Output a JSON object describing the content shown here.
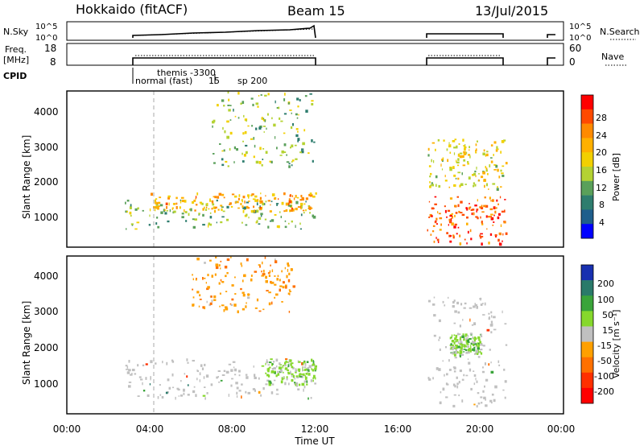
{
  "header": {
    "radar": "Hokkaido (fitACF)",
    "beam": "Beam 15",
    "date": "13/Jul/2015"
  },
  "top_panels": {
    "nsky": {
      "label": "N.Sky",
      "left_ticks": [
        "10^5",
        "10^0"
      ],
      "right_ticks": [
        "10^5",
        "10^0"
      ],
      "right_label": "N.Search"
    },
    "freq": {
      "label_line1": "Freq.",
      "label_line2": "[MHz]",
      "left_ticks": [
        "18",
        "8"
      ],
      "right_ticks": [
        "60",
        "0"
      ],
      "right_label": "Nave"
    },
    "cpid": {
      "label": "CPID",
      "annotations": [
        "themis -3300",
        "normal (fast)",
        "15",
        "sp 200"
      ]
    }
  },
  "power_panel": {
    "ylabel": "Slant Range [km]",
    "yticks": [
      "4000",
      "3000",
      "2000",
      "1000"
    ],
    "colorbar_label": "Power [dB]",
    "colorbar_ticks": [
      "28",
      "24",
      "20",
      "16",
      "12",
      "8",
      "4"
    ],
    "colors": [
      "#ff0000",
      "#ff4a00",
      "#ff8a00",
      "#ffb000",
      "#f2d000",
      "#b4d232",
      "#5aa05a",
      "#2e7d6e",
      "#1e5e8c",
      "#0000ff"
    ]
  },
  "velocity_panel": {
    "ylabel": "Slant Range [km]",
    "yticks": [
      "4000",
      "3000",
      "2000",
      "1000"
    ],
    "colorbar_label": "Velocity [m s⁻¹]",
    "colorbar_ticks": [
      "200",
      "100",
      "50",
      "15",
      "-15",
      "-50",
      "-100",
      "-200"
    ],
    "ground_scatter_color": "#c0c0c0",
    "colors": [
      "#1830b0",
      "#2a7a6a",
      "#3aa43a",
      "#86d82c",
      "#c0c0c0",
      "#ffa000",
      "#ff7000",
      "#ff3000",
      "#ff0000"
    ]
  },
  "xaxis": {
    "label": "Time UT",
    "ticks": [
      "00:00",
      "04:00",
      "08:00",
      "12:00",
      "16:00",
      "20:00",
      "00:00"
    ]
  },
  "chart_data": {
    "type": "heatmap",
    "title": "Hokkaido (fitACF) Beam 15 13/Jul/2015",
    "x": {
      "label": "Time UT",
      "range_hours": [
        0,
        24
      ],
      "ticks": [
        "00:00",
        "04:00",
        "08:00",
        "12:00",
        "16:00",
        "20:00",
        "00:00"
      ]
    },
    "y": {
      "label": "Slant Range [km]",
      "range": [
        180,
        4500
      ],
      "ticks": [
        1000,
        2000,
        3000,
        4000
      ]
    },
    "observation_intervals_UT_hours": [
      [
        2.8,
        12.0
      ],
      [
        17.4,
        21.2
      ],
      [
        23.8,
        24.0
      ]
    ],
    "cpid_annotations": [
      {
        "text": "themis -3300",
        "time_UT_hours": 3.1
      },
      {
        "text": "normal (fast)",
        "time_UT_hours": 3.1
      },
      {
        "text": "15",
        "time_UT_hours": 6.6
      },
      {
        "text": "sp 200",
        "time_UT_hours": 7.0
      }
    ],
    "nsky_range": [
      1,
      100000
    ],
    "freq_range_MHz": [
      8,
      18
    ],
    "freq_MHz": 12,
    "nave_range": [
      0,
      60
    ],
    "nave": 30,
    "panels": [
      {
        "name": "Power",
        "unit": "dB",
        "colorbar_ticks": [
          4,
          8,
          12,
          16,
          20,
          24,
          28
        ],
        "scatter_regions": [
          {
            "t_UT_hours": [
              2.8,
              12.0
            ],
            "range_km": [
              700,
              1500
            ],
            "power_dB": 14
          },
          {
            "t_UT_hours": [
              4.0,
              12.0
            ],
            "range_km": [
              1200,
              1700
            ],
            "power_dB": 22
          },
          {
            "t_UT_hours": [
              7.0,
              12.0
            ],
            "range_km": [
              2400,
              4500
            ],
            "power_dB": 14
          },
          {
            "t_UT_hours": [
              17.4,
              21.2
            ],
            "range_km": [
              300,
              1600
            ],
            "power_dB": 27
          },
          {
            "t_UT_hours": [
              17.4,
              21.2
            ],
            "range_km": [
              1800,
              3200
            ],
            "power_dB": 18
          }
        ]
      },
      {
        "name": "Velocity",
        "unit": "m s⁻¹",
        "colorbar_ticks": [
          -200,
          -100,
          -50,
          -15,
          15,
          50,
          100,
          200
        ],
        "scatter_regions": [
          {
            "t_UT_hours": [
              2.8,
              12.0
            ],
            "range_km": [
              600,
              1700
            ],
            "velocity_ms": 0,
            "ground_scatter": true
          },
          {
            "t_UT_hours": [
              9.5,
              12.0
            ],
            "range_km": [
              1000,
              1700
            ],
            "velocity_ms": 30
          },
          {
            "t_UT_hours": [
              6.0,
              11.0
            ],
            "range_km": [
              3000,
              4500
            ],
            "velocity_ms": -40
          },
          {
            "t_UT_hours": [
              17.4,
              21.2
            ],
            "range_km": [
              400,
              3400
            ],
            "velocity_ms": 0,
            "ground_scatter": true
          },
          {
            "t_UT_hours": [
              18.5,
              20.0
            ],
            "range_km": [
              1800,
              2400
            ],
            "velocity_ms": 30
          }
        ]
      }
    ]
  }
}
